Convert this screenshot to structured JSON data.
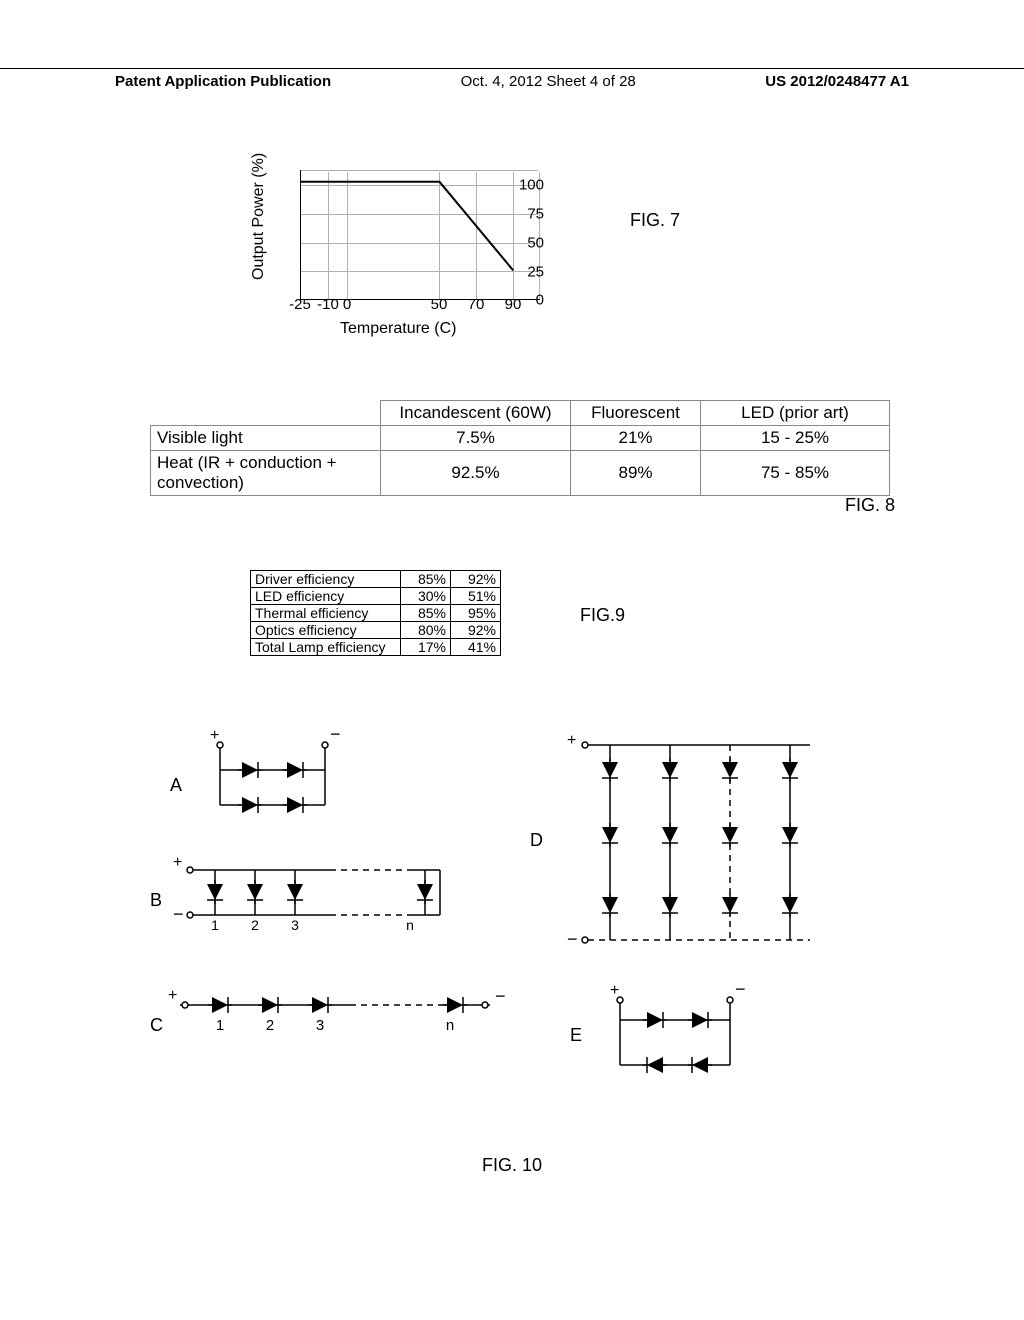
{
  "header": {
    "left": "Patent Application Publication",
    "center": "Oct. 4, 2012  Sheet 4 of 28",
    "right": "US 2012/0248477 A1"
  },
  "fig7": {
    "caption": "FIG. 7",
    "ylabel": "Output Power (%)",
    "xlabel": "Temperature (C)",
    "yticks": [
      0,
      25,
      50,
      75,
      100
    ],
    "xticks": [
      -25,
      -10,
      0,
      50,
      70,
      90
    ],
    "xlim": [
      -25,
      105
    ],
    "ylim": [
      0,
      110
    ],
    "line": [
      [
        -25,
        100
      ],
      [
        50,
        100
      ],
      [
        90,
        25
      ]
    ],
    "line_color": "#000000",
    "grid_color": "#b0b0b0",
    "line_width": 2
  },
  "fig8": {
    "caption": "FIG. 8",
    "columns": [
      "",
      "Incandescent (60W)",
      "Fluorescent",
      "LED (prior art)"
    ],
    "rows": [
      {
        "label": "Visible light",
        "cells": [
          "7.5%",
          "21%",
          "15 - 25%"
        ]
      },
      {
        "label": "Heat (IR + conduction + convection)",
        "cells": [
          "92.5%",
          "89%",
          "75 - 85%"
        ]
      }
    ]
  },
  "fig9": {
    "caption": "FIG.9",
    "rows": [
      [
        "Driver efficiency",
        "85%",
        "92%"
      ],
      [
        "LED efficiency",
        "30%",
        "51%"
      ],
      [
        "Thermal efficiency",
        "85%",
        "95%"
      ],
      [
        "Optics efficiency",
        "80%",
        "92%"
      ],
      [
        "Total Lamp efficiency",
        "17%",
        "41%"
      ]
    ]
  },
  "fig10": {
    "caption": "FIG. 10",
    "circuits": {
      "A": {
        "label": "A"
      },
      "B": {
        "label": "B",
        "diode_numbers": [
          "1",
          "2",
          "3",
          "n"
        ]
      },
      "C": {
        "label": "C",
        "diode_numbers": [
          "1",
          "2",
          "3",
          "n"
        ]
      },
      "D": {
        "label": "D"
      },
      "E": {
        "label": "E"
      }
    },
    "terminals": {
      "pos": "+",
      "neg": "−"
    }
  }
}
